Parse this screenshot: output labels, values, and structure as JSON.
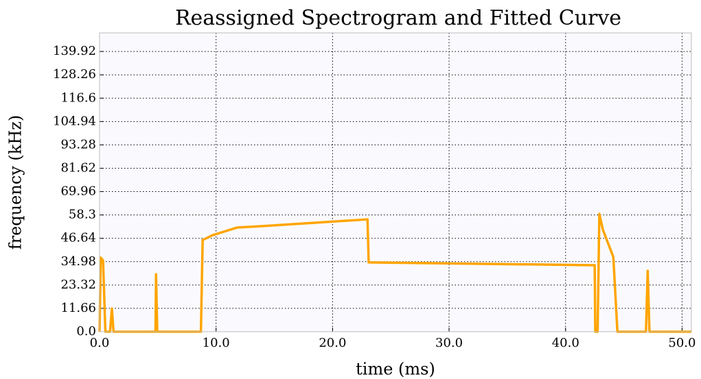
{
  "chart_data": {
    "type": "line",
    "title": "Reassigned Spectrogram and Fitted Curve",
    "x_label": "time (ms)",
    "y_label": "frequency (kHz)",
    "xlim": [
      0,
      50.8
    ],
    "ylim": [
      0,
      149.2
    ],
    "xticks": [
      {
        "value": 0,
        "label": "0.0"
      },
      {
        "value": 10,
        "label": "10.0"
      },
      {
        "value": 20,
        "label": "20.0"
      },
      {
        "value": 30,
        "label": "30.0"
      },
      {
        "value": 40,
        "label": "40.0"
      },
      {
        "value": 50,
        "label": "50.0"
      }
    ],
    "yticks": [
      {
        "value": 0,
        "label": "0.0"
      },
      11.66,
      23.32,
      34.98,
      46.64,
      58.3,
      69.96,
      81.62,
      93.28,
      104.94,
      116.6,
      128.26,
      139.92
    ],
    "grid": true,
    "series": [
      {
        "color": "#ffa500",
        "x": [
          0,
          0.1,
          0.3,
          0.5,
          0.9,
          1.06,
          1.2,
          4.8,
          4.85,
          4.95,
          8.7,
          8.85,
          9.7,
          11.8,
          13.9,
          23,
          23.1,
          42.5,
          42.55,
          42.75,
          42.9,
          43.2,
          44.1,
          44.45,
          46.9,
          47.05,
          47.2,
          50.8
        ],
        "values": [
          0,
          37,
          35.6,
          0,
          0,
          11.6,
          0,
          0,
          28.7,
          0,
          0,
          45.8,
          48.2,
          52,
          52.7,
          56.1,
          34.6,
          33.2,
          0,
          0,
          58.8,
          51,
          37.3,
          0,
          0,
          30.4,
          0,
          0
        ]
      }
    ]
  }
}
